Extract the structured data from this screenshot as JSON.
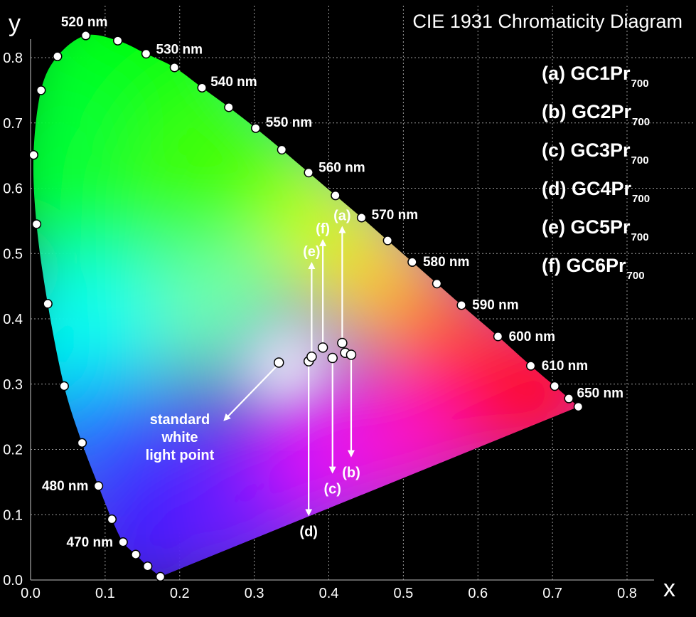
{
  "chart_data": {
    "type": "scatter",
    "title": "CIE 1931 Chromaticity Diagram",
    "xlabel": "x",
    "ylabel": "y",
    "xlim": [
      0,
      0.8
    ],
    "ylim": [
      0,
      0.8
    ],
    "xticks": [
      "0.0",
      "0.1",
      "0.2",
      "0.3",
      "0.4",
      "0.5",
      "0.6",
      "0.7",
      "0.8"
    ],
    "yticks": [
      "0.0",
      "0.1",
      "0.2",
      "0.3",
      "0.4",
      "0.5",
      "0.6",
      "0.7",
      "0.8"
    ],
    "grid": true,
    "spectral_locus": [
      {
        "x": 0.1741,
        "y": 0.005,
        "label": ""
      },
      {
        "x": 0.157,
        "y": 0.021,
        "label": ""
      },
      {
        "x": 0.141,
        "y": 0.039,
        "label": ""
      },
      {
        "x": 0.124,
        "y": 0.058,
        "label": "470 nm"
      },
      {
        "x": 0.109,
        "y": 0.093,
        "label": ""
      },
      {
        "x": 0.091,
        "y": 0.144,
        "label": "480 nm"
      },
      {
        "x": 0.069,
        "y": 0.21,
        "label": ""
      },
      {
        "x": 0.045,
        "y": 0.297,
        "label": ""
      },
      {
        "x": 0.023,
        "y": 0.423,
        "label": ""
      },
      {
        "x": 0.008,
        "y": 0.545,
        "label": ""
      },
      {
        "x": 0.004,
        "y": 0.651,
        "label": ""
      },
      {
        "x": 0.014,
        "y": 0.75,
        "label": ""
      },
      {
        "x": 0.036,
        "y": 0.802,
        "label": ""
      },
      {
        "x": 0.074,
        "y": 0.834,
        "label": "520 nm"
      },
      {
        "x": 0.117,
        "y": 0.826,
        "label": ""
      },
      {
        "x": 0.155,
        "y": 0.806,
        "label": "530 nm"
      },
      {
        "x": 0.193,
        "y": 0.785,
        "label": ""
      },
      {
        "x": 0.23,
        "y": 0.754,
        "label": "540 nm"
      },
      {
        "x": 0.266,
        "y": 0.724,
        "label": ""
      },
      {
        "x": 0.302,
        "y": 0.692,
        "label": "550 nm"
      },
      {
        "x": 0.337,
        "y": 0.659,
        "label": ""
      },
      {
        "x": 0.373,
        "y": 0.624,
        "label": "560 nm"
      },
      {
        "x": 0.409,
        "y": 0.589,
        "label": ""
      },
      {
        "x": 0.444,
        "y": 0.555,
        "label": "570 nm"
      },
      {
        "x": 0.479,
        "y": 0.52,
        "label": ""
      },
      {
        "x": 0.512,
        "y": 0.487,
        "label": "580 nm"
      },
      {
        "x": 0.545,
        "y": 0.454,
        "label": ""
      },
      {
        "x": 0.578,
        "y": 0.421,
        "label": "590 nm"
      },
      {
        "x": 0.627,
        "y": 0.373,
        "label": "600 nm"
      },
      {
        "x": 0.671,
        "y": 0.328,
        "label": "610 nm"
      },
      {
        "x": 0.703,
        "y": 0.297,
        "label": ""
      },
      {
        "x": 0.722,
        "y": 0.278,
        "label": ""
      },
      {
        "x": 0.7347,
        "y": 0.2653,
        "label": "650 nm"
      }
    ],
    "white_point": {
      "x": 0.333,
      "y": 0.333
    },
    "samples": [
      {
        "name": "(a) GC1Pr",
        "sub": "700",
        "marker": "(a)",
        "x": 0.418,
        "y": 0.363,
        "arrow_to_y": 0.54
      },
      {
        "name": "(b) GC2Pr",
        "sub": "700",
        "marker": "(b)",
        "x": 0.43,
        "y": 0.345,
        "arrow_to_y": 0.19
      },
      {
        "name": "(c) GC3Pr",
        "sub": "700",
        "marker": "(c)",
        "x": 0.405,
        "y": 0.34,
        "arrow_to_y": 0.165
      },
      {
        "name": "(d) GC4Pr",
        "sub": "700",
        "marker": "(d)",
        "x": 0.373,
        "y": 0.335,
        "arrow_to_y": 0.1
      },
      {
        "name": "(e) GC5Pr",
        "sub": "700",
        "marker": "(e)",
        "x": 0.377,
        "y": 0.342,
        "arrow_to_y": 0.485
      },
      {
        "name": "(f) GC6Pr",
        "sub": "700",
        "marker": "(f)",
        "x": 0.392,
        "y": 0.356,
        "arrow_to_y": 0.52
      }
    ],
    "extra_points": [
      {
        "x": 0.422,
        "y": 0.348
      }
    ],
    "annotation": {
      "text": [
        "standard",
        "white",
        "light point"
      ]
    },
    "colors": {
      "background": "#000000",
      "grid": "#9a9a9a",
      "marker_fill": "#ffffff",
      "marker_stroke": "#000000",
      "text": "#ffffff"
    }
  }
}
